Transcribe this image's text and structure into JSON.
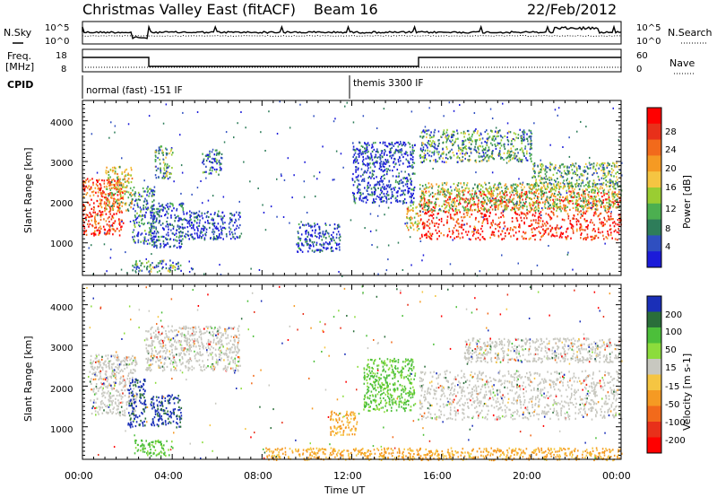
{
  "header": {
    "station": "Christmas Valley East (fitACF)",
    "beam": "Beam 16",
    "date": "22/Feb/2012"
  },
  "panels": {
    "nsky_label": "N.Sky",
    "nsearch_label": "N.Search",
    "noise_left_ticks": [
      "10^5",
      "10^0"
    ],
    "noise_right_ticks": [
      "10^5",
      "10^0"
    ],
    "freq_label_1": "Freq.",
    "freq_label_2": "[MHz]",
    "freq_ticks": [
      "18",
      "8"
    ],
    "nave_label": "Nave",
    "nave_ticks": [
      "60",
      "0"
    ],
    "cpid_label": "CPID",
    "cpid_segments": [
      "normal (fast) -151 IF",
      "themis 3300 IF"
    ]
  },
  "colors": {
    "power_scale": [
      "#1b1bd9",
      "#2f4fc0",
      "#2e7d5a",
      "#4caf50",
      "#9acd32",
      "#f5c542",
      "#f59a23",
      "#f26a1b",
      "#e8301a",
      "#ff0000"
    ],
    "velocity_scale": [
      "#1a2fb8",
      "#2a6e3a",
      "#4cbf3a",
      "#8cdc3c",
      "#c8c8c0",
      "#f5c542",
      "#f59a23",
      "#f26a1b",
      "#e8301a",
      "#ff0000"
    ]
  },
  "chart_data": [
    {
      "type": "heatmap",
      "name": "Power",
      "ylabel": "Slant Range [km]",
      "colorbar_label": "Power [dB]",
      "colorbar_ticks": [
        "28",
        "24",
        "20",
        "16",
        "12",
        "8",
        "4"
      ],
      "yticks": [
        "4000",
        "3000",
        "2000",
        "1000"
      ],
      "ylim": [
        200,
        4500
      ],
      "xlim_hours": [
        0,
        24
      ],
      "bands": [
        {
          "t": [
            0.0,
            1.8
          ],
          "r": [
            1200,
            2600
          ],
          "level": 0.85
        },
        {
          "t": [
            1.0,
            2.2
          ],
          "r": [
            1800,
            2900
          ],
          "level": 0.5
        },
        {
          "t": [
            2.2,
            3.2
          ],
          "r": [
            1000,
            2400
          ],
          "level": 0.2
        },
        {
          "t": [
            3.0,
            4.5
          ],
          "r": [
            900,
            2000
          ],
          "level": 0.15
        },
        {
          "t": [
            4.5,
            7.0
          ],
          "r": [
            1100,
            1800
          ],
          "level": 0.1
        },
        {
          "t": [
            3.2,
            4.0
          ],
          "r": [
            2600,
            3400
          ],
          "level": 0.3
        },
        {
          "t": [
            5.3,
            6.2
          ],
          "r": [
            2700,
            3300
          ],
          "level": 0.2
        },
        {
          "t": [
            2.2,
            4.4
          ],
          "r": [
            300,
            600
          ],
          "level": 0.3
        },
        {
          "t": [
            9.5,
            11.5
          ],
          "r": [
            800,
            1500
          ],
          "level": 0.1
        },
        {
          "t": [
            12.0,
            14.8
          ],
          "r": [
            2000,
            3500
          ],
          "level": 0.1
        },
        {
          "t": [
            14.4,
            15.0
          ],
          "r": [
            1300,
            2000
          ],
          "level": 0.6
        },
        {
          "t": [
            15.0,
            24.0
          ],
          "r": [
            1100,
            2300
          ],
          "level": 0.9
        },
        {
          "t": [
            15.0,
            24.0
          ],
          "r": [
            1800,
            2500
          ],
          "level": 0.45
        },
        {
          "t": [
            15.0,
            20.0
          ],
          "r": [
            3000,
            3800
          ],
          "level": 0.3
        },
        {
          "t": [
            20.0,
            24.0
          ],
          "r": [
            2400,
            3000
          ],
          "level": 0.35
        }
      ]
    },
    {
      "type": "heatmap",
      "name": "Velocity",
      "ylabel": "Slant Range [km]",
      "colorbar_label": "Velocity [m s-1]",
      "colorbar_ticks": [
        "200",
        "100",
        "50",
        "15",
        "-15",
        "-50",
        "-100",
        "-200"
      ],
      "yticks": [
        "4000",
        "3000",
        "2000",
        "1000"
      ],
      "ylim": [
        200,
        4500
      ],
      "xlabel": "Time UT",
      "xticks": [
        "00:00",
        "04:00",
        "08:00",
        "12:00",
        "16:00",
        "20:00",
        "00:00"
      ],
      "xlim_hours": [
        0,
        24
      ],
      "bands": [
        {
          "t": [
            0.3,
            2.4
          ],
          "r": [
            1300,
            2800
          ],
          "kind": "gray"
        },
        {
          "t": [
            2.0,
            2.8
          ],
          "r": [
            1000,
            2200
          ],
          "kind": "blue"
        },
        {
          "t": [
            3.0,
            4.4
          ],
          "r": [
            1000,
            1800
          ],
          "kind": "blue"
        },
        {
          "t": [
            2.3,
            4.0
          ],
          "r": [
            300,
            700
          ],
          "kind": "green"
        },
        {
          "t": [
            2.8,
            7.0
          ],
          "r": [
            2400,
            3500
          ],
          "kind": "gray"
        },
        {
          "t": [
            12.5,
            14.8
          ],
          "r": [
            1400,
            2700
          ],
          "kind": "green"
        },
        {
          "t": [
            15.0,
            24.0
          ],
          "r": [
            1200,
            2400
          ],
          "kind": "gray"
        },
        {
          "t": [
            17.0,
            24.0
          ],
          "r": [
            2600,
            3200
          ],
          "kind": "gray"
        },
        {
          "t": [
            8.0,
            24.0
          ],
          "r": [
            200,
            500
          ],
          "kind": "orange"
        },
        {
          "t": [
            11.0,
            12.2
          ],
          "r": [
            800,
            1400
          ],
          "kind": "orange"
        }
      ]
    }
  ]
}
